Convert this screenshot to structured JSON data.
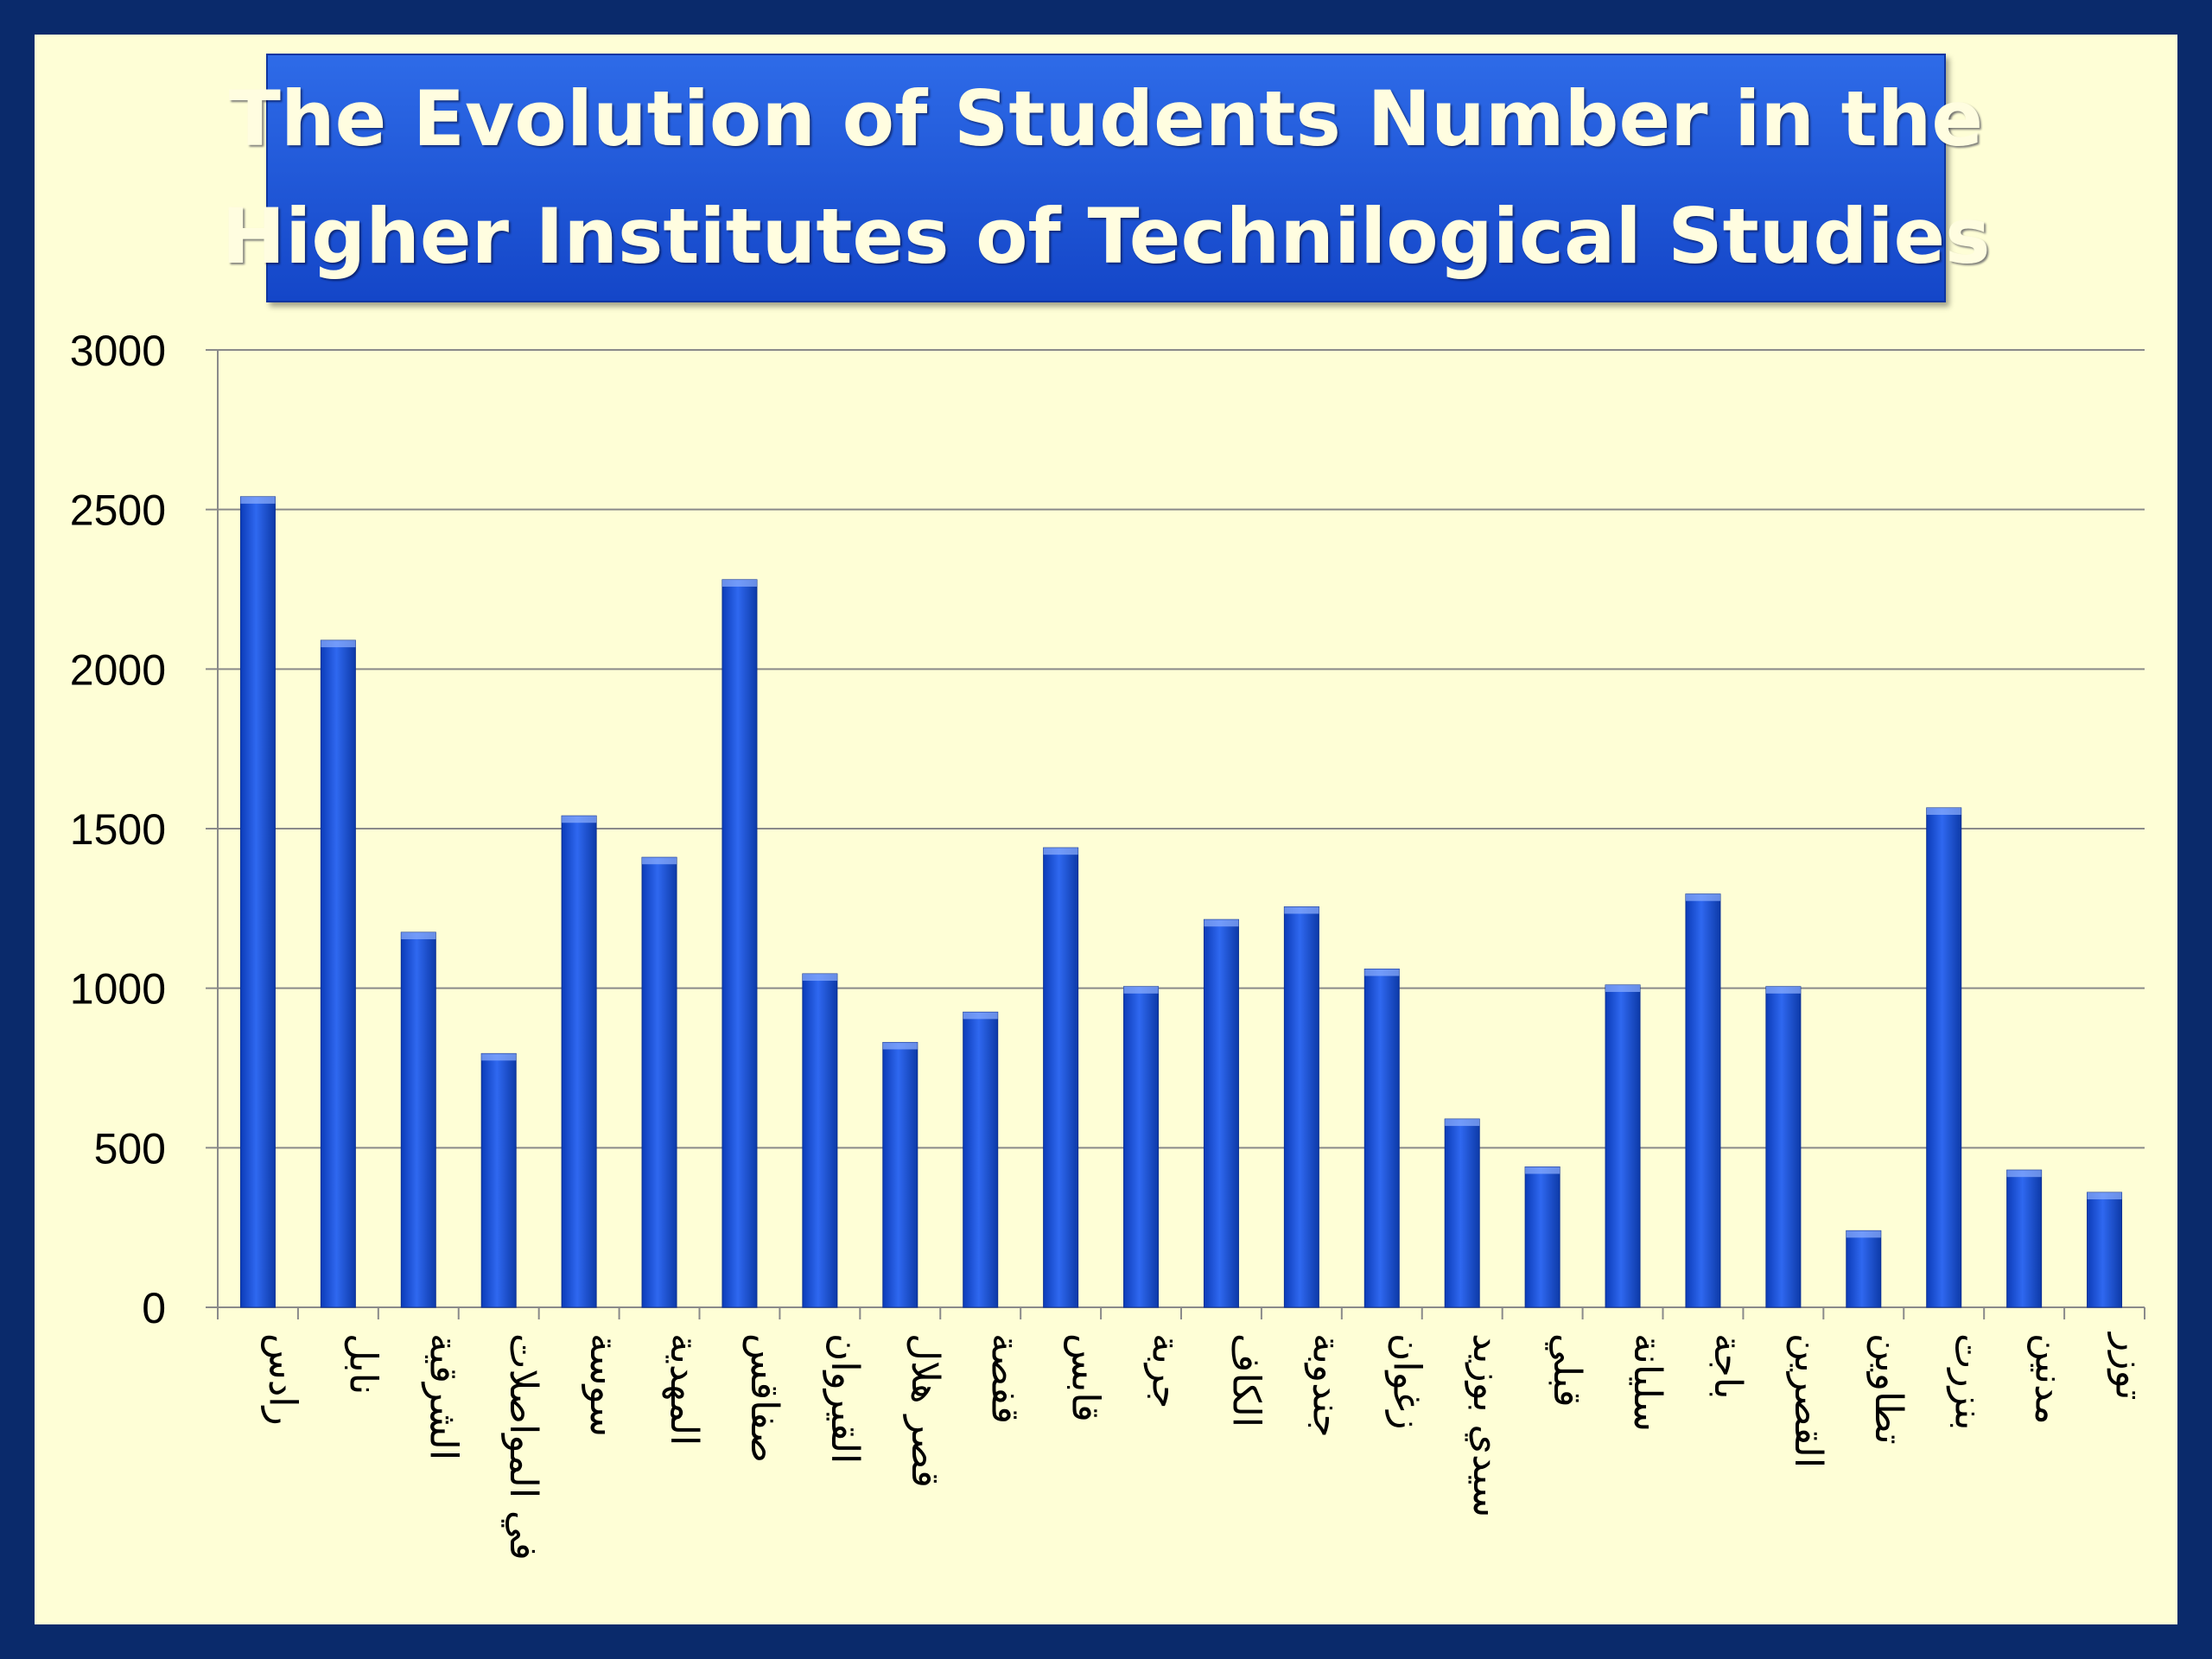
{
  "colors": {
    "frame": "#0a2a6b",
    "background": "#fefed6",
    "bar": "#1f55d6",
    "title_box": "#1e56db",
    "title_text": "#fffde0"
  },
  "chart_data": {
    "type": "bar",
    "title_lines": [
      "The Evolution of Students Number in the",
      "Higher Institutes of Technilogical Studies"
    ],
    "xlabel": "",
    "ylabel": "",
    "ylim": [
      0,
      3000
    ],
    "yticks": [
      0,
      500,
      1000,
      1500,
      2000,
      2500,
      3000
    ],
    "grid": true,
    "categories": [
      "رادس",
      "نابل",
      "الشرقية",
      "في المواصلات",
      "سوسة",
      "المهدية",
      "صفاقس",
      "القيروان",
      "قصر هلال",
      "قفصة",
      "قابس",
      "جربة",
      "الكاف",
      "جندوبة",
      "زغوان",
      "سيدي بوزيد",
      "قبلي",
      "سليانة",
      "باجة",
      "القصرين",
      "تطاوين",
      "بنزرت",
      "مدنين",
      "توزر"
    ],
    "values": [
      2540,
      2090,
      1175,
      795,
      1540,
      1410,
      2280,
      1045,
      830,
      925,
      1440,
      1005,
      1215,
      1255,
      1060,
      590,
      440,
      1010,
      1295,
      1005,
      240,
      1565,
      430,
      360
    ]
  }
}
